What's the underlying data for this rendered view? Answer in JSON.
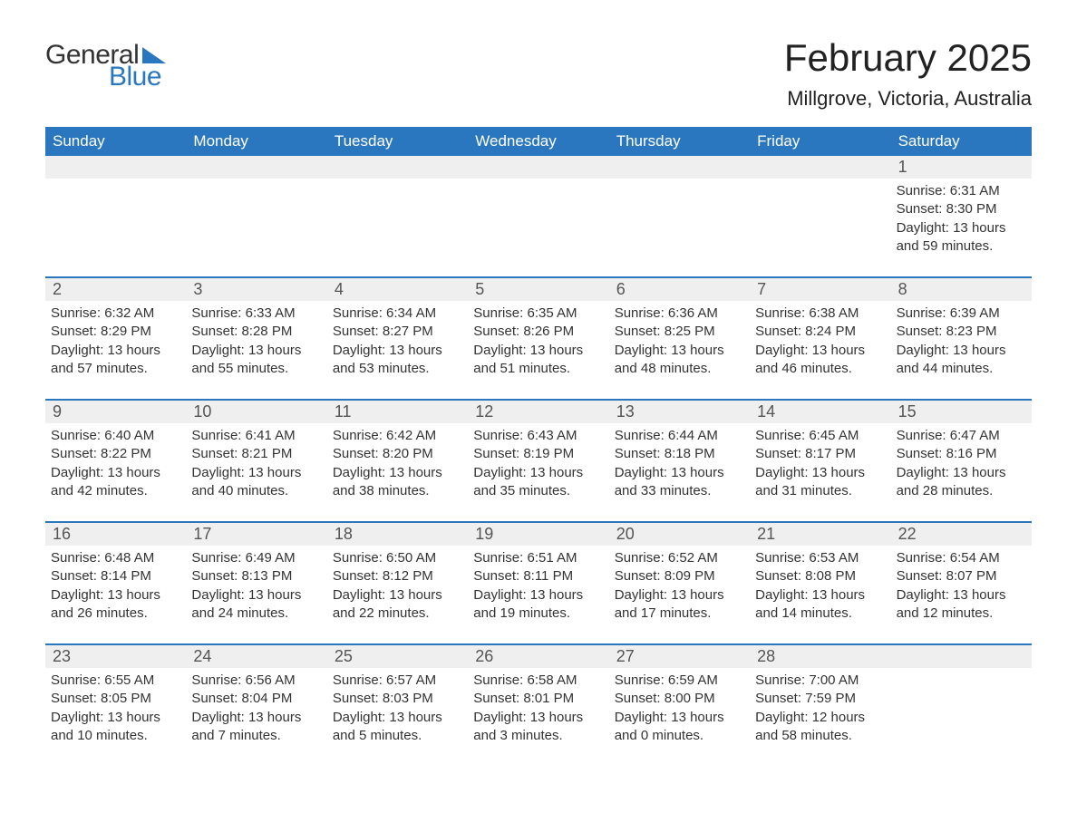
{
  "logo": {
    "word1": "General",
    "word2": "Blue"
  },
  "title": "February 2025",
  "location": "Millgrove, Victoria, Australia",
  "colors": {
    "header_bg": "#2b77bf",
    "header_text": "#ffffff",
    "accent_line": "#2b77bf",
    "daynum_bg": "#efefef",
    "daynum_text": "#555555",
    "body_text": "#333333",
    "page_bg": "#ffffff"
  },
  "typography": {
    "title_fontsize": 42,
    "location_fontsize": 22,
    "weekday_fontsize": 17,
    "daynum_fontsize": 18,
    "body_fontsize": 15
  },
  "weekdays": [
    "Sunday",
    "Monday",
    "Tuesday",
    "Wednesday",
    "Thursday",
    "Friday",
    "Saturday"
  ],
  "labels": {
    "sunrise": "Sunrise:",
    "sunset": "Sunset:",
    "daylight": "Daylight:"
  },
  "weeks": [
    [
      null,
      null,
      null,
      null,
      null,
      null,
      {
        "n": "1",
        "sunrise": "6:31 AM",
        "sunset": "8:30 PM",
        "daylight": "13 hours and 59 minutes."
      }
    ],
    [
      {
        "n": "2",
        "sunrise": "6:32 AM",
        "sunset": "8:29 PM",
        "daylight": "13 hours and 57 minutes."
      },
      {
        "n": "3",
        "sunrise": "6:33 AM",
        "sunset": "8:28 PM",
        "daylight": "13 hours and 55 minutes."
      },
      {
        "n": "4",
        "sunrise": "6:34 AM",
        "sunset": "8:27 PM",
        "daylight": "13 hours and 53 minutes."
      },
      {
        "n": "5",
        "sunrise": "6:35 AM",
        "sunset": "8:26 PM",
        "daylight": "13 hours and 51 minutes."
      },
      {
        "n": "6",
        "sunrise": "6:36 AM",
        "sunset": "8:25 PM",
        "daylight": "13 hours and 48 minutes."
      },
      {
        "n": "7",
        "sunrise": "6:38 AM",
        "sunset": "8:24 PM",
        "daylight": "13 hours and 46 minutes."
      },
      {
        "n": "8",
        "sunrise": "6:39 AM",
        "sunset": "8:23 PM",
        "daylight": "13 hours and 44 minutes."
      }
    ],
    [
      {
        "n": "9",
        "sunrise": "6:40 AM",
        "sunset": "8:22 PM",
        "daylight": "13 hours and 42 minutes."
      },
      {
        "n": "10",
        "sunrise": "6:41 AM",
        "sunset": "8:21 PM",
        "daylight": "13 hours and 40 minutes."
      },
      {
        "n": "11",
        "sunrise": "6:42 AM",
        "sunset": "8:20 PM",
        "daylight": "13 hours and 38 minutes."
      },
      {
        "n": "12",
        "sunrise": "6:43 AM",
        "sunset": "8:19 PM",
        "daylight": "13 hours and 35 minutes."
      },
      {
        "n": "13",
        "sunrise": "6:44 AM",
        "sunset": "8:18 PM",
        "daylight": "13 hours and 33 minutes."
      },
      {
        "n": "14",
        "sunrise": "6:45 AM",
        "sunset": "8:17 PM",
        "daylight": "13 hours and 31 minutes."
      },
      {
        "n": "15",
        "sunrise": "6:47 AM",
        "sunset": "8:16 PM",
        "daylight": "13 hours and 28 minutes."
      }
    ],
    [
      {
        "n": "16",
        "sunrise": "6:48 AM",
        "sunset": "8:14 PM",
        "daylight": "13 hours and 26 minutes."
      },
      {
        "n": "17",
        "sunrise": "6:49 AM",
        "sunset": "8:13 PM",
        "daylight": "13 hours and 24 minutes."
      },
      {
        "n": "18",
        "sunrise": "6:50 AM",
        "sunset": "8:12 PM",
        "daylight": "13 hours and 22 minutes."
      },
      {
        "n": "19",
        "sunrise": "6:51 AM",
        "sunset": "8:11 PM",
        "daylight": "13 hours and 19 minutes."
      },
      {
        "n": "20",
        "sunrise": "6:52 AM",
        "sunset": "8:09 PM",
        "daylight": "13 hours and 17 minutes."
      },
      {
        "n": "21",
        "sunrise": "6:53 AM",
        "sunset": "8:08 PM",
        "daylight": "13 hours and 14 minutes."
      },
      {
        "n": "22",
        "sunrise": "6:54 AM",
        "sunset": "8:07 PM",
        "daylight": "13 hours and 12 minutes."
      }
    ],
    [
      {
        "n": "23",
        "sunrise": "6:55 AM",
        "sunset": "8:05 PM",
        "daylight": "13 hours and 10 minutes."
      },
      {
        "n": "24",
        "sunrise": "6:56 AM",
        "sunset": "8:04 PM",
        "daylight": "13 hours and 7 minutes."
      },
      {
        "n": "25",
        "sunrise": "6:57 AM",
        "sunset": "8:03 PM",
        "daylight": "13 hours and 5 minutes."
      },
      {
        "n": "26",
        "sunrise": "6:58 AM",
        "sunset": "8:01 PM",
        "daylight": "13 hours and 3 minutes."
      },
      {
        "n": "27",
        "sunrise": "6:59 AM",
        "sunset": "8:00 PM",
        "daylight": "13 hours and 0 minutes."
      },
      {
        "n": "28",
        "sunrise": "7:00 AM",
        "sunset": "7:59 PM",
        "daylight": "12 hours and 58 minutes."
      },
      null
    ]
  ]
}
